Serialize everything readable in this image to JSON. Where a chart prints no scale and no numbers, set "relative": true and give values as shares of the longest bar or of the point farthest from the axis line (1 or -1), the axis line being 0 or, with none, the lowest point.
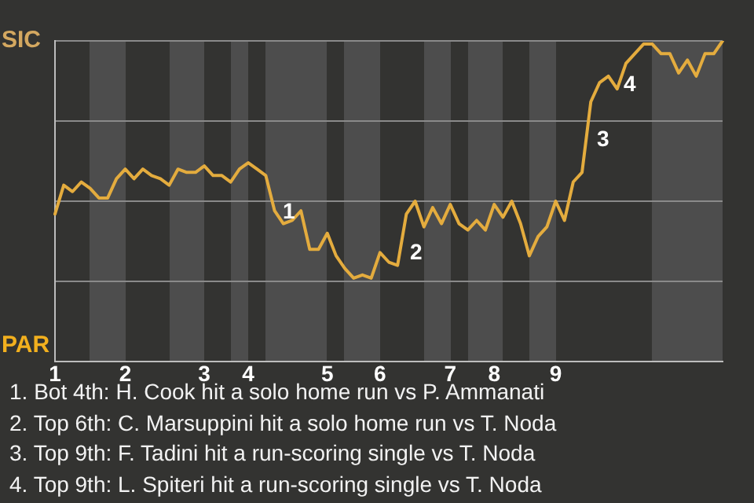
{
  "chart_data": {
    "type": "line",
    "relative": true,
    "categories": [
      "1",
      null,
      null,
      null,
      null,
      null,
      null,
      null,
      "2",
      null,
      null,
      null,
      null,
      null,
      null,
      null,
      null,
      "3",
      null,
      null,
      null,
      null,
      "4",
      null,
      null,
      null,
      null,
      null,
      null,
      null,
      null,
      "5",
      null,
      null,
      null,
      null,
      null,
      "6",
      null,
      null,
      null,
      null,
      null,
      null,
      null,
      "7",
      null,
      null,
      null,
      null,
      "8",
      null,
      null,
      null,
      null,
      null,
      null,
      "9",
      null,
      null,
      null,
      null,
      null,
      null,
      null,
      null,
      null,
      null,
      null,
      null,
      null,
      null,
      null,
      null,
      null,
      null,
      null
    ],
    "series": [
      {
        "color": "#e4ac3e",
        "values": [
          0.46,
          0.55,
          0.53,
          0.56,
          0.54,
          0.51,
          0.51,
          0.57,
          0.6,
          0.57,
          0.6,
          0.58,
          0.57,
          0.55,
          0.6,
          0.59,
          0.59,
          0.61,
          0.58,
          0.58,
          0.56,
          0.6,
          0.62,
          0.6,
          0.58,
          0.47,
          0.43,
          0.44,
          0.47,
          0.35,
          0.35,
          0.4,
          0.33,
          0.29,
          0.26,
          0.27,
          0.26,
          0.34,
          0.31,
          0.3,
          0.46,
          0.5,
          0.42,
          0.48,
          0.43,
          0.49,
          0.43,
          0.41,
          0.44,
          0.41,
          0.49,
          0.45,
          0.5,
          0.43,
          0.33,
          0.39,
          0.42,
          0.5,
          0.44,
          0.56,
          0.59,
          0.81,
          0.87,
          0.89,
          0.85,
          0.93,
          0.96,
          0.99,
          0.99,
          0.96,
          0.96,
          0.9,
          0.94,
          0.89,
          0.96,
          0.96,
          1
        ]
      }
    ],
    "grid": "y",
    "marker": "none",
    "annotations": [
      "SIC",
      "PAR",
      "1",
      "2",
      "3",
      "4",
      "1. Bot 4th: H. Cook hit a solo home run vs P. Ammanati",
      "2. Top 6th: C. Marsuppini hit a solo home run vs T. Noda",
      "3. Top 9th: F. Tadini hit a run-scoring single vs T. Noda",
      "4. Top 9th: L. Spiteri hit a run-scoring single vs T. Noda"
    ]
  }
}
